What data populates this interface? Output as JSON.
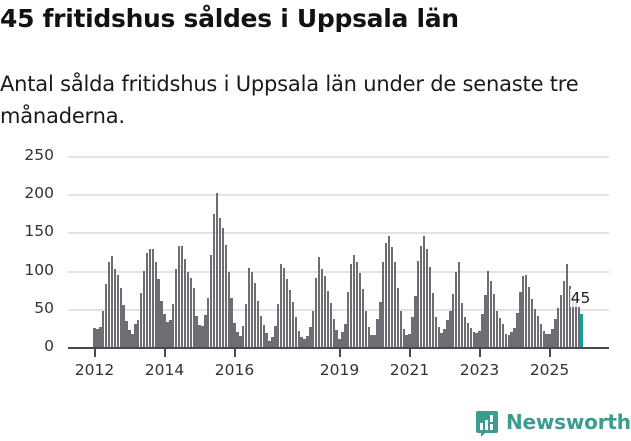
{
  "header": {
    "title": "45 fritidshus såldes i Uppsala län",
    "subtitle": "Antal sålda fritidshus i Uppsala län under de senaste tre månaderna."
  },
  "brand": {
    "name": "Newsworthy",
    "icon": "bar-chart-speech-bubble-icon",
    "color": "#3a9d8f"
  },
  "colors": {
    "bar": "#6e6d73",
    "highlight": "#1a9e96",
    "grid": "#e3e3e3",
    "axis": "#4a4a4a"
  },
  "chart_data": {
    "type": "bar",
    "title": "45 fritidshus såldes i Uppsala län",
    "subtitle": "Antal sålda fritidshus i Uppsala län under de senaste tre månaderna.",
    "xlabel": "",
    "ylabel": "",
    "ylim": [
      0,
      250
    ],
    "yticks": [
      0,
      50,
      100,
      150,
      200,
      250
    ],
    "grid": true,
    "legend": null,
    "x_start": "2012-01",
    "x_end": "2025-12",
    "frequency": "monthly",
    "xtick_labels": [
      "2012",
      "2014",
      "2016",
      "2019",
      "2021",
      "2023",
      "2025"
    ],
    "xtick_month_index": [
      0,
      24,
      48,
      84,
      108,
      132,
      156
    ],
    "annotation": {
      "text": "45",
      "month_index": 167
    },
    "highlight_index": 167,
    "years": [
      "2012",
      "2013",
      "2014",
      "2015",
      "2016",
      "2017",
      "2018",
      "2019",
      "2020",
      "2021",
      "2022",
      "2023",
      "2024",
      "2025"
    ],
    "values": [
      26,
      25,
      27,
      48,
      84,
      113,
      121,
      104,
      96,
      79,
      56,
      35,
      24,
      18,
      32,
      37,
      72,
      101,
      125,
      129,
      129,
      112,
      90,
      62,
      45,
      34,
      37,
      58,
      104,
      134,
      133,
      116,
      99,
      91,
      79,
      42,
      30,
      29,
      43,
      66,
      122,
      175,
      203,
      170,
      157,
      135,
      100,
      65,
      33,
      21,
      16,
      29,
      57,
      105,
      100,
      85,
      62,
      42,
      30,
      20,
      9,
      15,
      29,
      58,
      110,
      105,
      90,
      76,
      60,
      40,
      22,
      15,
      12,
      16,
      27,
      49,
      92,
      119,
      104,
      94,
      75,
      59,
      38,
      24,
      12,
      21,
      32,
      73,
      110,
      122,
      113,
      98,
      77,
      49,
      27,
      17,
      17,
      38,
      60,
      113,
      137,
      147,
      132,
      113,
      79,
      49,
      25,
      17,
      18,
      41,
      68,
      114,
      134,
      147,
      130,
      106,
      72,
      40,
      27,
      20,
      25,
      37,
      48,
      71,
      99,
      112,
      59,
      41,
      33,
      26,
      21,
      20,
      22,
      44,
      69,
      101,
      88,
      71,
      49,
      39,
      31,
      18,
      17,
      21,
      26,
      46,
      73,
      94,
      96,
      80,
      64,
      51,
      42,
      31,
      22,
      18,
      18,
      25,
      38,
      52,
      69,
      88,
      110,
      81,
      69,
      60,
      54,
      45
    ]
  }
}
